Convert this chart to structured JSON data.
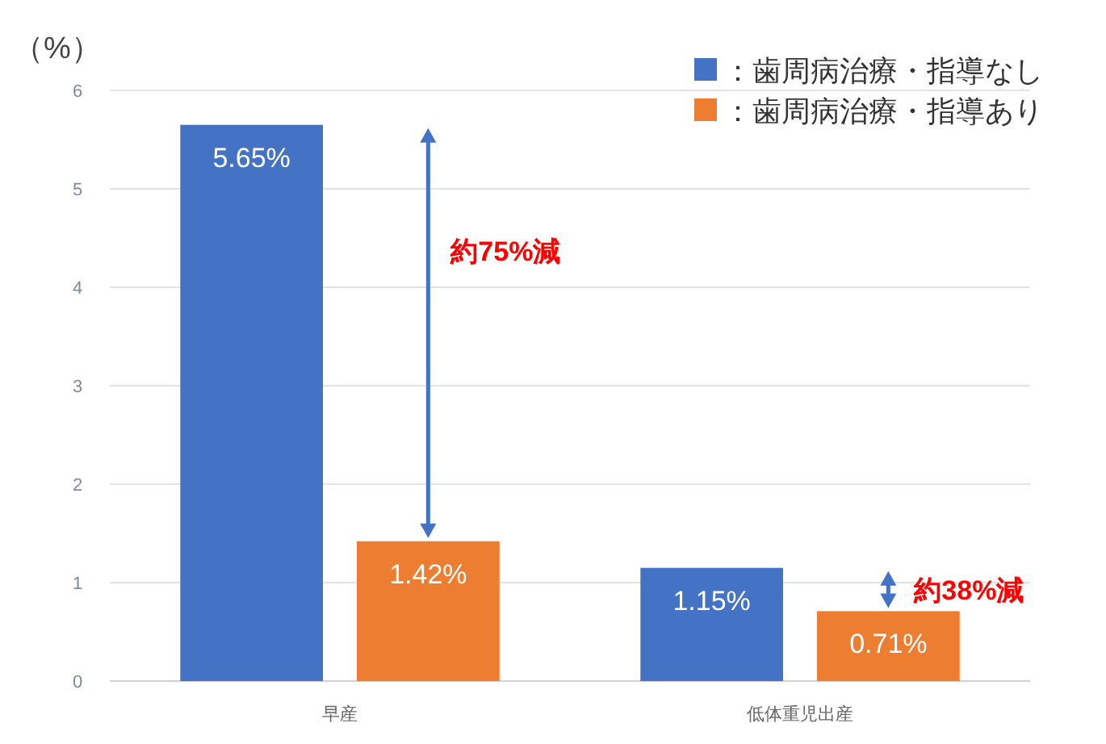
{
  "chart_data": {
    "type": "bar",
    "ylabel": "（%）",
    "categories": [
      "早産",
      "低体重児出産"
    ],
    "series": [
      {
        "name": "：歯周病治療・指導なし",
        "color": "#4472c4",
        "values": [
          5.65,
          1.15
        ],
        "value_labels": [
          "5.65%",
          "1.15%"
        ]
      },
      {
        "name": "：歯周病治療・指導あり",
        "color": "#ed7d31",
        "values": [
          1.42,
          0.71
        ],
        "value_labels": [
          "1.42%",
          "0.71%"
        ]
      }
    ],
    "ylim": [
      0,
      6
    ],
    "yticks": [
      0,
      1,
      2,
      3,
      4,
      5,
      6
    ],
    "grid": "y",
    "legend": "top right",
    "annotations": [
      "約75%減",
      "約38%減"
    ]
  }
}
